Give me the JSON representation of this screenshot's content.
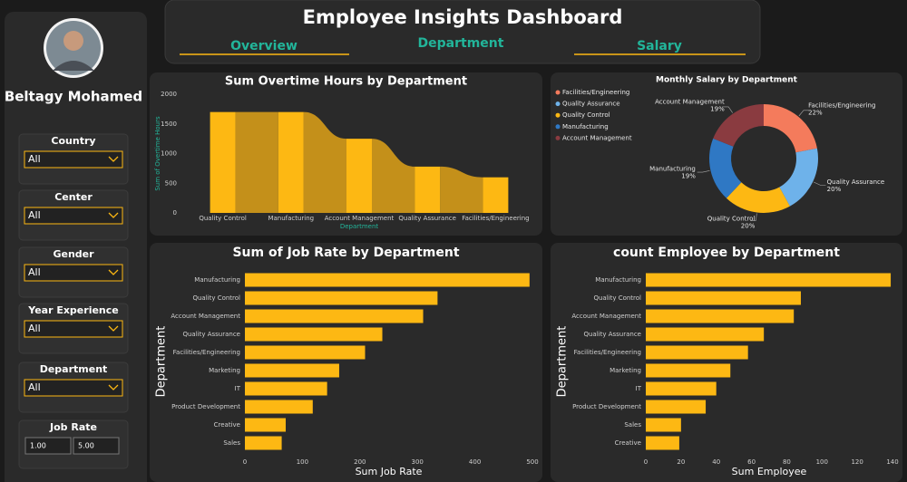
{
  "header": {
    "title": "Employee Insights Dashboard",
    "tabs": [
      "Overview",
      "Department",
      "Salary"
    ]
  },
  "sidebar": {
    "name": "Beltagy Mohamed",
    "filters": [
      {
        "label": "Country",
        "value": "All"
      },
      {
        "label": "Center",
        "value": "All"
      },
      {
        "label": "Gender",
        "value": "All"
      },
      {
        "label": "Year Experience",
        "value": "All"
      },
      {
        "label": "Department",
        "value": "All"
      }
    ],
    "job_rate": {
      "label": "Job Rate",
      "min": "1.00",
      "max": "5.00"
    }
  },
  "chart_data": [
    {
      "type": "ribbon",
      "title": "Sum Overtime Hours by Department",
      "x_label": "Department",
      "y_label": "Sum of Overtime Hours",
      "categories": [
        "Quality Control",
        "Manufacturing",
        "Account Management",
        "Quality Assurance",
        "Facilities/Engineering"
      ],
      "values": [
        1700,
        1700,
        1250,
        780,
        600
      ],
      "color": "#fdb813",
      "ylim": [
        0,
        2000
      ],
      "yticks": [
        0,
        500,
        1000,
        1500,
        2000
      ]
    },
    {
      "type": "donut",
      "title": "Monthly Salary by Department",
      "categories": [
        "Facilities/Engineering",
        "Quality Assurance",
        "Quality Control",
        "Manufacturing",
        "Account Management"
      ],
      "values": [
        22,
        20,
        20,
        19,
        19
      ],
      "value_labels": [
        "22%",
        "20%",
        "20%",
        "19%",
        "19%"
      ],
      "colors": [
        "#f47b5c",
        "#6eb2ea",
        "#fdb813",
        "#2f78c4",
        "#8a3b40"
      ]
    },
    {
      "type": "hbar",
      "title": "Sum of Job Rate by Department",
      "x_label": "Sum Job Rate",
      "y_label": "Department",
      "categories": [
        "Manufacturing",
        "Quality Control",
        "Account Management",
        "Quality Assurance",
        "Facilities/Engineering",
        "Marketing",
        "IT",
        "Product Development",
        "Creative",
        "Sales"
      ],
      "values": [
        495,
        335,
        310,
        239,
        209,
        164,
        143,
        118,
        71,
        64
      ],
      "color": "#fdb813",
      "xlim": [
        0,
        500
      ],
      "xticks": [
        0,
        100,
        200,
        300,
        400,
        500
      ]
    },
    {
      "type": "hbar",
      "title": "count Employee by Department",
      "x_label": "Sum Employee",
      "y_label": "Department",
      "categories": [
        "Manufacturing",
        "Quality Control",
        "Account Management",
        "Quality Assurance",
        "Facilities/Engineering",
        "Marketing",
        "IT",
        "Product Development",
        "Sales",
        "Creative"
      ],
      "values": [
        139,
        88,
        84,
        67,
        58,
        48,
        40,
        34,
        20,
        19
      ],
      "color": "#fdb813",
      "xlim": [
        0,
        140
      ],
      "xticks": [
        0,
        20,
        40,
        60,
        80,
        100,
        120,
        140
      ]
    }
  ]
}
